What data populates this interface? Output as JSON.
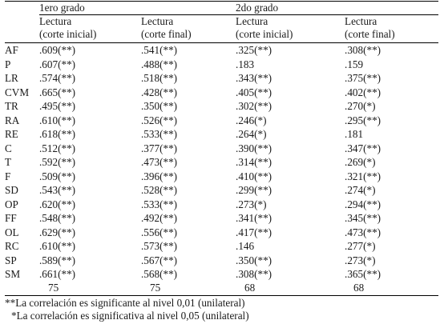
{
  "table": {
    "grades": [
      "1ero grado",
      "2do grado"
    ],
    "headers": [
      [
        "Lectura",
        "(corte inicial)"
      ],
      [
        "Lectura",
        "(corte final)"
      ],
      [
        "Lectura",
        "(corte inicial)"
      ],
      [
        "Lectura",
        "(corte final)"
      ]
    ],
    "rows": [
      {
        "label": "AF",
        "values": [
          ".609(**)",
          ".541(**)",
          ".325(**)",
          ".308(**)"
        ]
      },
      {
        "label": "P",
        "values": [
          ".607(**)",
          ".488(**)",
          ".183",
          ".159"
        ]
      },
      {
        "label": "LR",
        "values": [
          ".574(**)",
          ".518(**)",
          ".343(**)",
          ".375(**)"
        ]
      },
      {
        "label": "CVM",
        "values": [
          ".665(**)",
          ".428(**)",
          ".405(**)",
          ".402(**)"
        ]
      },
      {
        "label": "TR",
        "values": [
          ".495(**)",
          ".350(**)",
          ".302(**)",
          ".270(*)"
        ]
      },
      {
        "label": "RA",
        "values": [
          ".610(**)",
          ".526(**)",
          ".246(*)",
          ".295(**)"
        ]
      },
      {
        "label": "RE",
        "values": [
          ".618(**)",
          ".533(**)",
          ".264(*)",
          ".181"
        ]
      },
      {
        "label": "C",
        "values": [
          ".512(**)",
          ".377(**)",
          ".390(**)",
          ".347(**)"
        ]
      },
      {
        "label": "T",
        "values": [
          ".592(**)",
          ".473(**)",
          ".314(**)",
          ".269(*)"
        ]
      },
      {
        "label": "F",
        "values": [
          ".509(**)",
          ".396(**)",
          ".410(**)",
          ".321(**)"
        ]
      },
      {
        "label": "SD",
        "values": [
          ".543(**)",
          ".528(**)",
          ".299(**)",
          ".274(*)"
        ]
      },
      {
        "label": "OP",
        "values": [
          ".620(**)",
          ".533(**)",
          ".273(*)",
          ".294(**)"
        ]
      },
      {
        "label": "FF",
        "values": [
          ".548(**)",
          ".492(**)",
          ".341(**)",
          ".345(**)"
        ]
      },
      {
        "label": "OL",
        "values": [
          ".629(**)",
          ".556(**)",
          ".417(**)",
          ".473(**)"
        ]
      },
      {
        "label": "RC",
        "values": [
          ".610(**)",
          ".573(**)",
          ".146",
          ".277(*)"
        ]
      },
      {
        "label": "SP",
        "values": [
          ".589(**)",
          ".567(**)",
          ".350(**)",
          ".273(*)"
        ]
      },
      {
        "label": "SM",
        "values": [
          ".661(**)",
          ".568(**)",
          ".308(**)",
          ".365(**)"
        ]
      }
    ],
    "n_values": [
      "75",
      "75",
      "68",
      "68"
    ]
  },
  "notes": [
    "**La correlación es significante al nivel 0,01 (unilateral)",
    "*La correlación es significativa al nivel 0,05 (unilateral)"
  ]
}
